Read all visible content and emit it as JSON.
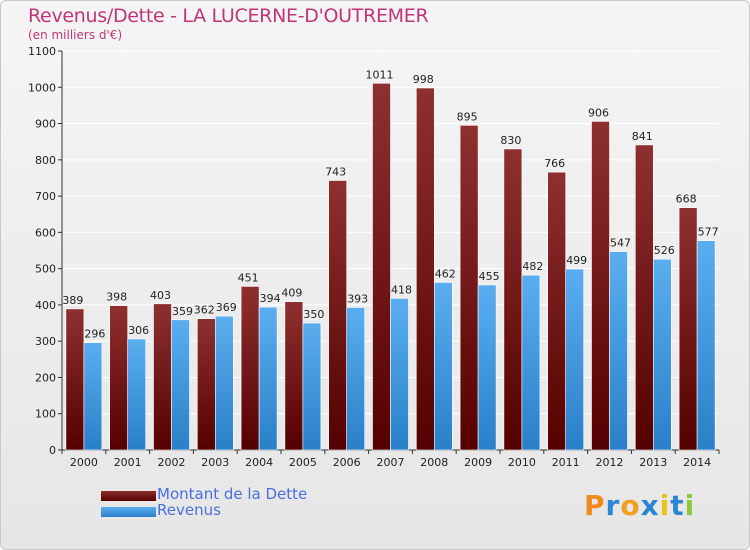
{
  "title": "Revenus/Dette - LA LUCERNE-D'OUTREMER",
  "subtitle": "(en milliers d'€)",
  "chart_data": {
    "type": "bar",
    "categories": [
      "2000",
      "2001",
      "2002",
      "2003",
      "2004",
      "2005",
      "2006",
      "2007",
      "2008",
      "2009",
      "2010",
      "2011",
      "2012",
      "2013",
      "2014"
    ],
    "series": [
      {
        "name": "Montant de la Dette",
        "color": "#7a1a1a",
        "values": [
          389,
          398,
          403,
          362,
          451,
          409,
          743,
          1011,
          998,
          895,
          830,
          766,
          906,
          841,
          668
        ]
      },
      {
        "name": "Revenus",
        "color": "#3f9be0",
        "values": [
          296,
          306,
          359,
          369,
          394,
          350,
          393,
          418,
          462,
          455,
          482,
          499,
          547,
          526,
          577
        ]
      }
    ],
    "ylim": [
      0,
      1100
    ],
    "yticks": [
      0,
      100,
      200,
      300,
      400,
      500,
      600,
      700,
      800,
      900,
      1000,
      1100
    ],
    "grid": true,
    "legend": "bottom-left"
  },
  "legend": {
    "items": [
      {
        "label": "Montant de la Dette",
        "color": "#7a1a1a"
      },
      {
        "label": "Revenus",
        "color": "#3f9be0"
      }
    ]
  },
  "logo": {
    "letters": [
      "P",
      "r",
      "o",
      "x",
      "i",
      "t",
      "i"
    ],
    "colors": [
      "#f08a1c",
      "#2c86d6",
      "#f0a020",
      "#2c86d6",
      "#e8c21a",
      "#2c86d6",
      "#8cc63f"
    ]
  }
}
